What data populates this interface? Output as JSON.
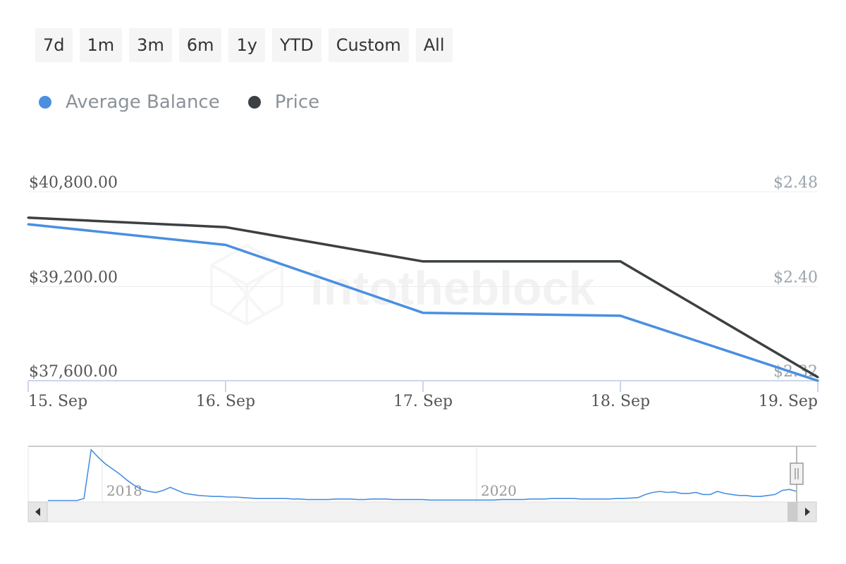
{
  "range_buttons": [
    "7d",
    "1m",
    "3m",
    "6m",
    "1y",
    "YTD",
    "Custom",
    "All"
  ],
  "legend": [
    {
      "label": "Average Balance",
      "color": "#4a8fe0"
    },
    {
      "label": "Price",
      "color": "#3c4043"
    }
  ],
  "watermark": "intotheblock",
  "chart_data": {
    "type": "line",
    "x": [
      "15. Sep",
      "16. Sep",
      "17. Sep",
      "18. Sep",
      "19. Sep"
    ],
    "left_axis": {
      "ticks": [
        "$40,800.00",
        "$39,200.00",
        "$37,600.00"
      ],
      "ylim": [
        37600,
        40800
      ]
    },
    "right_axis": {
      "ticks": [
        "$2.48",
        "$2.40",
        "$2.32"
      ],
      "ylim": [
        2.32,
        2.48
      ]
    },
    "series": [
      {
        "name": "Average Balance",
        "axis": "left",
        "color": "#4a8fe0",
        "values": [
          40250,
          39900,
          38750,
          38700,
          37600
        ]
      },
      {
        "name": "Price",
        "axis": "right",
        "color": "#3c4043",
        "values": [
          2.458,
          2.45,
          2.421,
          2.421,
          2.323
        ]
      }
    ],
    "grid": true,
    "legend_position": "top-left"
  },
  "navigator": {
    "year_labels": [
      "2018",
      "2020"
    ],
    "series": [
      0,
      0,
      0,
      0,
      0,
      0.04,
      1.0,
      0.85,
      0.72,
      0.62,
      0.52,
      0.4,
      0.3,
      0.22,
      0.18,
      0.16,
      0.2,
      0.26,
      0.2,
      0.14,
      0.12,
      0.1,
      0.09,
      0.08,
      0.08,
      0.07,
      0.07,
      0.06,
      0.05,
      0.04,
      0.04,
      0.04,
      0.04,
      0.04,
      0.03,
      0.03,
      0.02,
      0.02,
      0.02,
      0.02,
      0.03,
      0.03,
      0.03,
      0.02,
      0.02,
      0.03,
      0.03,
      0.03,
      0.02,
      0.02,
      0.02,
      0.02,
      0.02,
      0.01,
      0.01,
      0.01,
      0.01,
      0.01,
      0.01,
      0.01,
      0.01,
      0.01,
      0.01,
      0.02,
      0.02,
      0.02,
      0.02,
      0.03,
      0.03,
      0.03,
      0.04,
      0.04,
      0.04,
      0.04,
      0.03,
      0.03,
      0.03,
      0.03,
      0.03,
      0.04,
      0.04,
      0.05,
      0.06,
      0.12,
      0.16,
      0.18,
      0.16,
      0.17,
      0.14,
      0.14,
      0.16,
      0.12,
      0.12,
      0.18,
      0.14,
      0.12,
      0.1,
      0.1,
      0.08,
      0.08,
      0.1,
      0.12,
      0.2,
      0.22,
      0.18
    ]
  }
}
